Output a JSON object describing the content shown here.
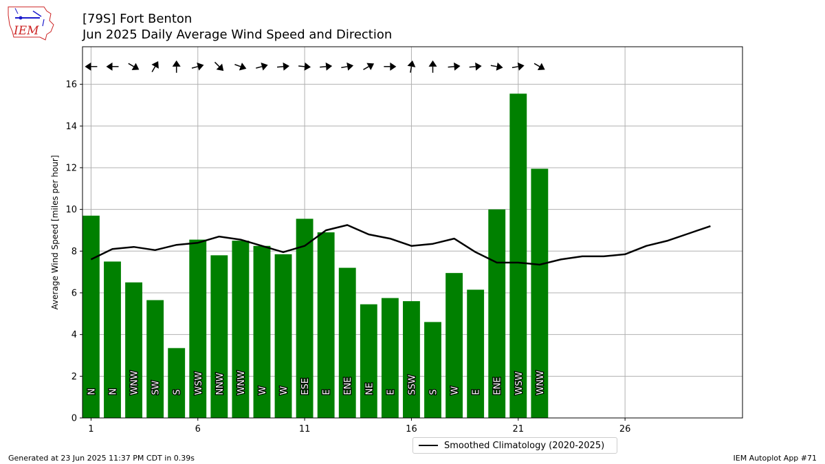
{
  "header": {
    "title_line1": "[79S] Fort Benton",
    "title_line2": "Jun 2025 Daily Average Wind Speed and Direction"
  },
  "logo": {
    "text": "IEM"
  },
  "footer": {
    "left": "Generated at 23 Jun 2025 11:37 PM CDT in 0.39s",
    "right": "IEM Autoplot App #71"
  },
  "legend": {
    "label": "Smoothed Climatology (2020-2025)"
  },
  "colors": {
    "bar": "#008000",
    "line": "#000000",
    "grid": "#b0b0b0",
    "logo_red": "#cc2222",
    "logo_blue": "#1a1acc"
  },
  "chart_data": {
    "type": "bar",
    "ylabel": "Average Wind Speed [miles per hour]",
    "xlabel": "",
    "ylim": [
      0,
      17.8
    ],
    "xlim": [
      0.6,
      31.5
    ],
    "yticks": [
      0,
      2,
      4,
      6,
      8,
      10,
      12,
      14,
      16
    ],
    "xticks": [
      1,
      6,
      11,
      16,
      21,
      26
    ],
    "grid": true,
    "legend_position": "below-center",
    "days": [
      1,
      2,
      3,
      4,
      5,
      6,
      7,
      8,
      9,
      10,
      11,
      12,
      13,
      14,
      15,
      16,
      17,
      18,
      19,
      20,
      21,
      22
    ],
    "speeds": [
      9.7,
      7.5,
      6.5,
      5.65,
      3.35,
      8.55,
      7.8,
      8.5,
      8.25,
      7.85,
      9.55,
      8.9,
      7.2,
      5.45,
      5.75,
      5.6,
      4.6,
      6.95,
      6.15,
      10.0,
      15.55,
      11.95
    ],
    "directions": [
      "N",
      "N",
      "WNW",
      "SW",
      "S",
      "WSW",
      "NNW",
      "WNW",
      "W",
      "W",
      "ESE",
      "E",
      "ENE",
      "NE",
      "E",
      "SSW",
      "S",
      "W",
      "E",
      "ENE",
      "WSW",
      "WNW"
    ],
    "arrow_angles_deg": [
      180,
      180,
      -30,
      60,
      90,
      15,
      -45,
      -20,
      15,
      5,
      -5,
      5,
      10,
      30,
      0,
      80,
      90,
      5,
      5,
      -10,
      10,
      -30
    ],
    "climatology": {
      "name": "Smoothed Climatology (2020-2025)",
      "x": [
        1,
        2,
        3,
        4,
        5,
        6,
        7,
        8,
        9,
        10,
        11,
        12,
        13,
        14,
        15,
        16,
        17,
        18,
        19,
        20,
        21,
        22,
        23,
        24,
        25,
        26,
        27,
        28,
        29,
        30
      ],
      "y": [
        7.6,
        8.1,
        8.2,
        8.05,
        8.3,
        8.4,
        8.7,
        8.55,
        8.25,
        7.95,
        8.25,
        9.0,
        9.25,
        8.8,
        8.6,
        8.25,
        8.35,
        8.6,
        7.95,
        7.45,
        7.45,
        7.35,
        7.6,
        7.75,
        7.75,
        7.85,
        8.25,
        8.5,
        8.85,
        9.2
      ]
    }
  }
}
